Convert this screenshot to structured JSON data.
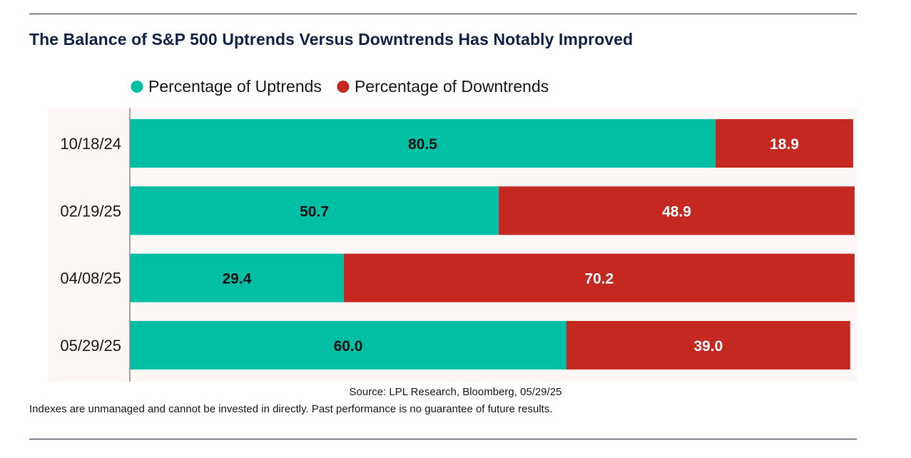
{
  "title": "The Balance of S&P 500 Uptrends Versus Downtrends Has Notably Improved",
  "source": "Source: LPL Research, Bloomberg, 05/29/25",
  "disclaimer": "Indexes are unmanaged and cannot be invested in directly. Past performance is no guarantee of future results.",
  "colors": {
    "uptrends": "#00bfa5",
    "downtrends": "#c42821",
    "plot_background": "#fdf8f6",
    "title": "#13224a"
  },
  "chart_data": {
    "type": "bar",
    "orientation": "horizontal",
    "stacked": true,
    "categories": [
      "10/18/24",
      "02/19/25",
      "04/08/25",
      "05/29/25"
    ],
    "series": [
      {
        "name": "Percentage of Uptrends",
        "values": [
          80.5,
          50.7,
          29.4,
          60.0
        ],
        "labels": [
          "80.5",
          "50.7",
          "29.4",
          "60.0"
        ]
      },
      {
        "name": "Percentage of Downtrends",
        "values": [
          18.9,
          48.9,
          70.2,
          39.0
        ],
        "labels": [
          "18.9",
          "48.9",
          "70.2",
          "39.0"
        ]
      }
    ],
    "xlim": [
      0,
      100
    ],
    "legend_position": "top-left",
    "grid": false
  }
}
